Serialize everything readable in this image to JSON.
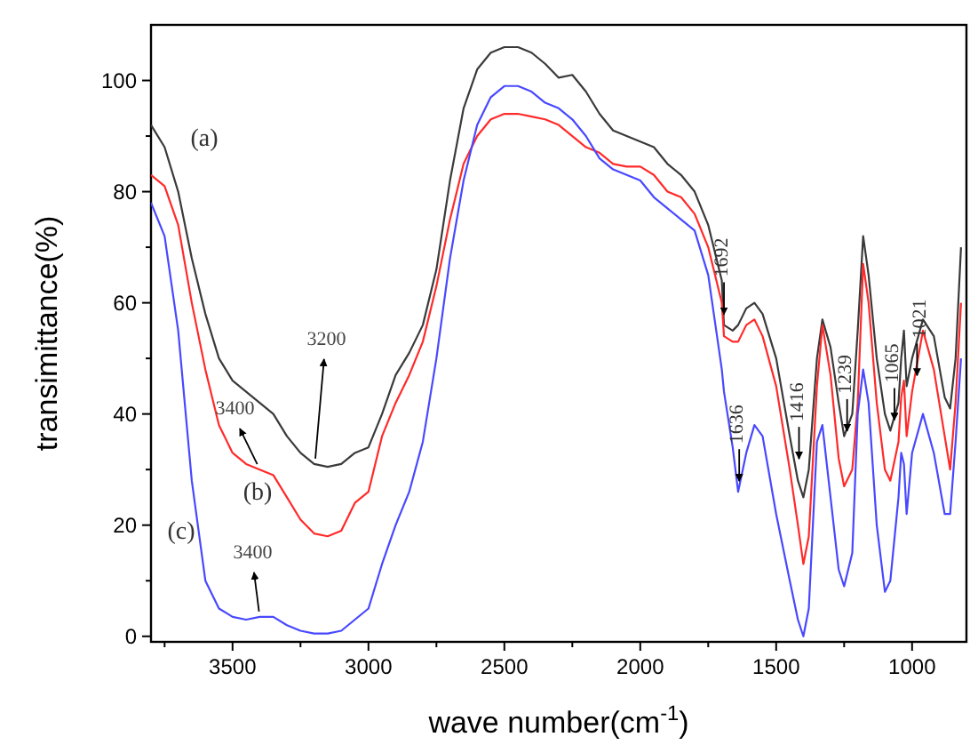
{
  "chart_data": {
    "type": "line",
    "xlabel": "wave number(cm$^{-1}$)",
    "ylabel": "transimittance(%)",
    "xlim": [
      3800,
      800
    ],
    "ylim": [
      -1,
      110
    ],
    "xticks": [
      {
        "value": 3750,
        "label": null
      },
      3500,
      {
        "value": 3250,
        "label": null
      },
      3000,
      {
        "value": 2750,
        "label": null
      },
      2500,
      {
        "value": 2250,
        "label": null
      },
      2000,
      {
        "value": 1750,
        "label": null
      },
      1500,
      {
        "value": 1250,
        "label": null
      },
      1000
    ],
    "yticks": [
      0,
      {
        "value": 10,
        "label": null
      },
      20,
      {
        "value": 30,
        "label": null
      },
      40,
      {
        "value": 50,
        "label": null
      },
      60,
      {
        "value": 70,
        "label": null
      },
      80,
      {
        "value": 90,
        "label": null
      },
      100
    ],
    "grid": false,
    "legend": false,
    "marker": "none",
    "line_style": "solid",
    "x": [
      3800,
      3750,
      3700,
      3650,
      3600,
      3550,
      3500,
      3450,
      3400,
      3350,
      3300,
      3250,
      3200,
      3150,
      3100,
      3050,
      3000,
      2950,
      2900,
      2850,
      2800,
      2750,
      2700,
      2650,
      2600,
      2550,
      2500,
      2450,
      2400,
      2350,
      2300,
      2250,
      2200,
      2150,
      2100,
      2050,
      2000,
      1950,
      1900,
      1850,
      1800,
      1750,
      1700,
      1692,
      1660,
      1640,
      1610,
      1580,
      1550,
      1500,
      1450,
      1420,
      1400,
      1380,
      1350,
      1330,
      1300,
      1270,
      1250,
      1220,
      1200,
      1180,
      1160,
      1130,
      1100,
      1080,
      1050,
      1040,
      1030,
      1020,
      1000,
      960,
      920,
      880,
      860,
      840,
      820
    ],
    "series": [
      {
        "name": "(a)",
        "color": "#3a3a3a",
        "values": [
          92,
          88,
          80,
          68,
          58,
          50,
          46,
          44,
          42,
          40,
          36,
          33,
          31,
          30.5,
          31,
          33,
          34,
          40,
          47,
          51,
          56,
          66,
          82,
          95,
          102,
          105,
          106,
          106,
          105,
          103,
          100.5,
          101,
          98,
          94,
          91,
          90,
          89,
          88,
          85,
          83,
          80,
          74,
          64,
          56,
          55,
          56,
          59,
          60,
          58,
          50,
          36,
          28,
          25,
          30,
          50,
          57,
          52,
          42,
          36,
          40,
          55,
          72,
          65,
          50,
          40,
          37,
          42,
          50,
          55,
          45,
          50,
          57,
          54,
          43,
          41,
          50,
          70
        ]
      },
      {
        "name": "(b)",
        "color": "#ff2a2a",
        "values": [
          83,
          81,
          74,
          60,
          48,
          38,
          33,
          31,
          30,
          29,
          25,
          21,
          18.5,
          18,
          19,
          24,
          26,
          36,
          42,
          47,
          53,
          63,
          75,
          85,
          90,
          93,
          94,
          94,
          93.5,
          93,
          92,
          90,
          88,
          87,
          85,
          84.5,
          84.5,
          83,
          80,
          79,
          76,
          70,
          60,
          54,
          53,
          53,
          56,
          57,
          54,
          45,
          30,
          20,
          13,
          18,
          45,
          56,
          47,
          32,
          27,
          30,
          42,
          67,
          60,
          42,
          30,
          28,
          35,
          43,
          46,
          36,
          44,
          55,
          48,
          36,
          30,
          42,
          60
        ]
      },
      {
        "name": "(c)",
        "color": "#4848ff",
        "values": [
          78,
          72,
          55,
          28,
          10,
          5,
          3.5,
          3,
          3.5,
          3.5,
          2,
          1,
          0.5,
          0.5,
          1,
          3,
          5,
          13,
          20,
          26,
          35,
          50,
          68,
          82,
          92,
          97,
          99,
          99,
          98,
          96,
          95,
          93,
          90,
          86,
          84,
          83,
          82,
          79,
          77,
          75,
          73,
          65,
          48,
          44,
          34,
          26,
          33,
          38,
          36,
          22,
          10,
          3,
          0,
          5,
          35,
          38,
          25,
          12,
          9,
          15,
          40,
          48,
          42,
          20,
          8,
          10,
          25,
          33,
          31,
          22,
          33,
          40,
          33,
          22,
          22,
          35,
          50
        ]
      }
    ],
    "annotations": [
      {
        "text": "3200",
        "x": 3200,
        "y": 31
      },
      {
        "text": "3400",
        "x": 3400,
        "y": 30
      },
      {
        "text": "3400",
        "x": 3400,
        "y": 3.5
      },
      {
        "text": "1692",
        "x": 1692,
        "y": 56
      },
      {
        "text": "1636",
        "x": 1636,
        "y": 26
      },
      {
        "text": "1416",
        "x": 1416,
        "y": 30
      },
      {
        "text": "1239",
        "x": 1239,
        "y": 35
      },
      {
        "text": "1065",
        "x": 1065,
        "y": 37
      },
      {
        "text": "1021",
        "x": 1021,
        "y": 45
      }
    ]
  }
}
